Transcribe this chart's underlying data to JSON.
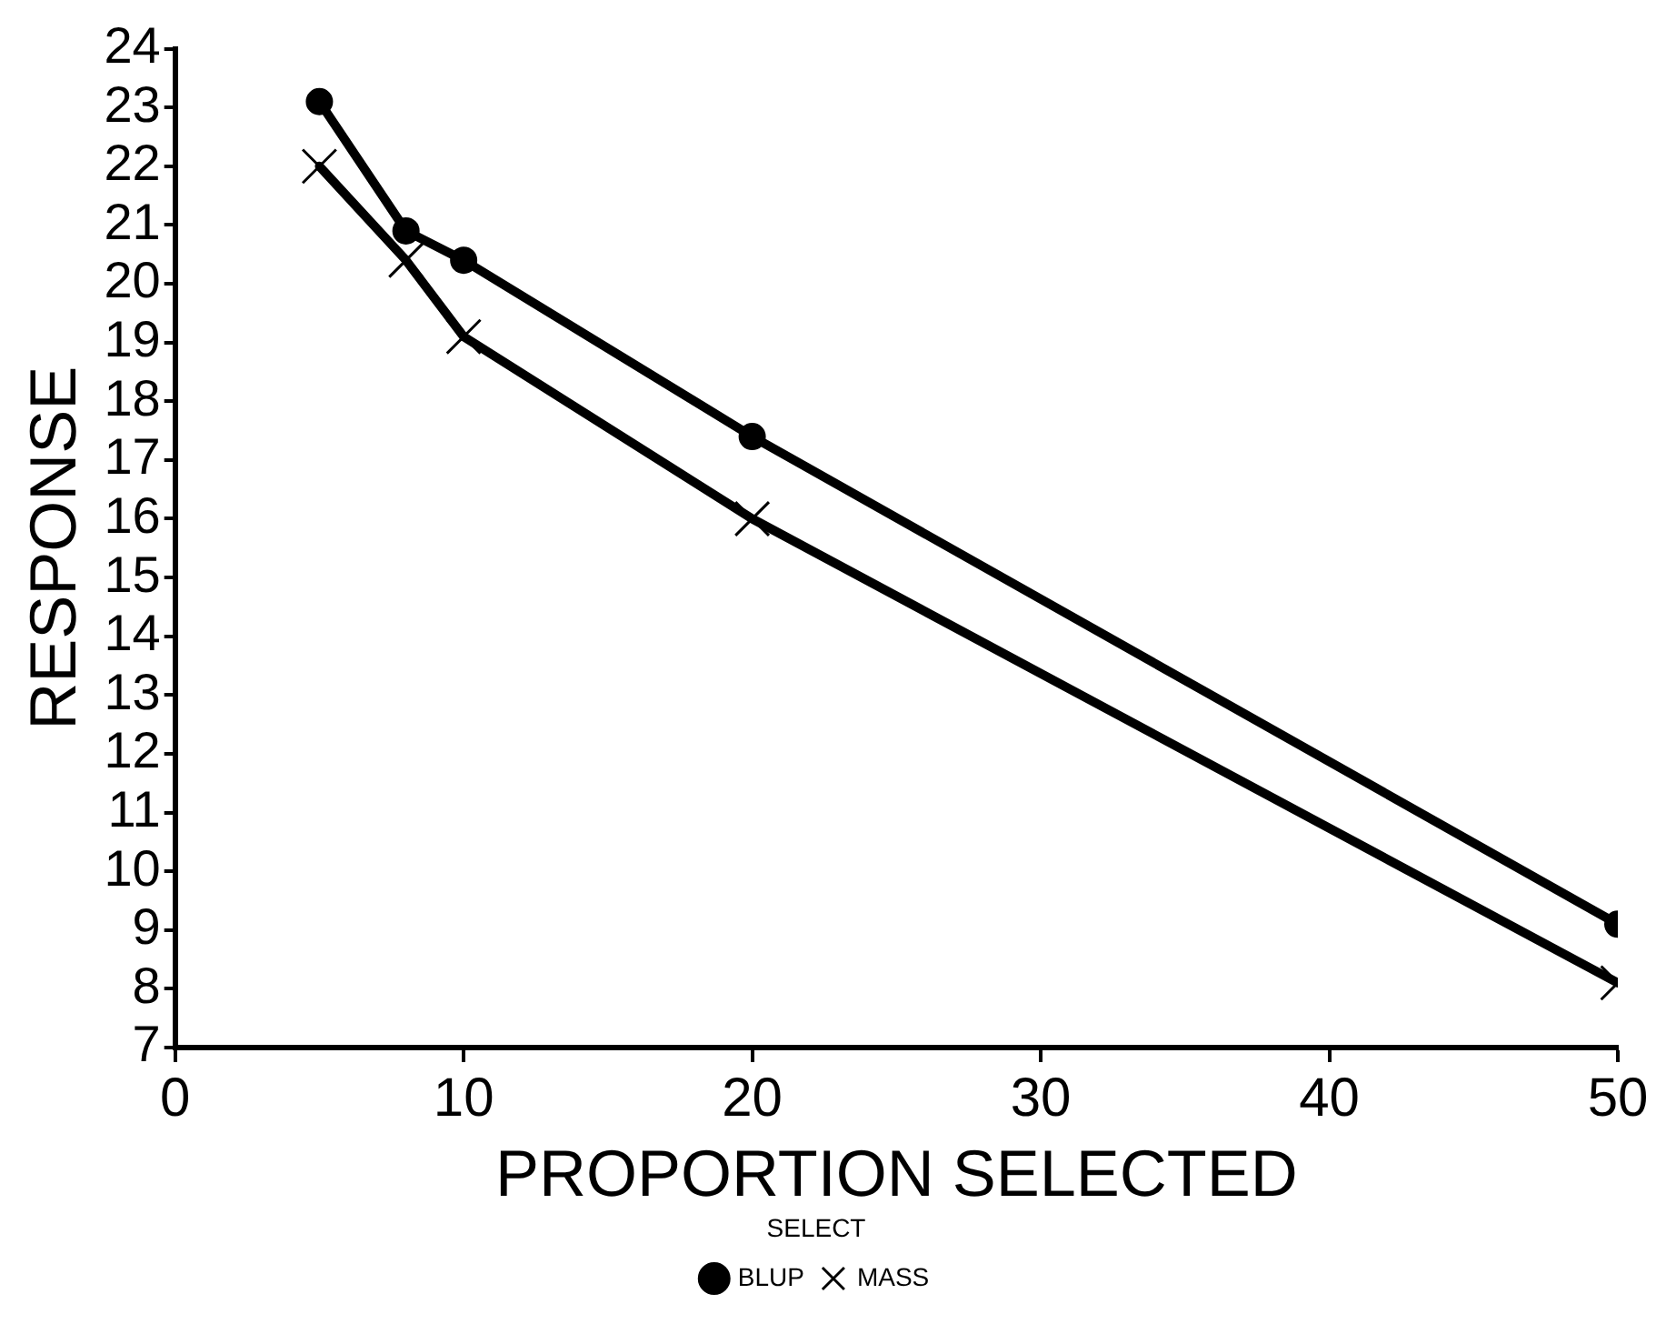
{
  "chart_data": {
    "type": "line",
    "xlabel": "PROPORTION SELECTED",
    "ylabel": "RESPONSE",
    "legend_title": "SELECT",
    "legend": "bottom",
    "grid": false,
    "line_style": "solid",
    "xlim": [
      0,
      50
    ],
    "xticks": [
      0,
      10,
      20,
      30,
      40,
      50
    ],
    "ylim": [
      7,
      24
    ],
    "yticks": [
      7,
      8,
      9,
      10,
      11,
      12,
      13,
      14,
      15,
      16,
      17,
      18,
      19,
      20,
      21,
      22,
      23,
      24
    ],
    "series": [
      {
        "name": "BLUP",
        "color": "#000000",
        "marker": "circle",
        "x": [
          5,
          8,
          10,
          20,
          50
        ],
        "values": [
          23.1,
          20.9,
          20.4,
          17.4,
          9.1
        ]
      },
      {
        "name": "MASS",
        "color": "#000000",
        "marker": "cross",
        "x": [
          5,
          8,
          10,
          20,
          50
        ],
        "values": [
          22.0,
          20.4,
          19.1,
          16.0,
          8.1
        ]
      }
    ]
  }
}
